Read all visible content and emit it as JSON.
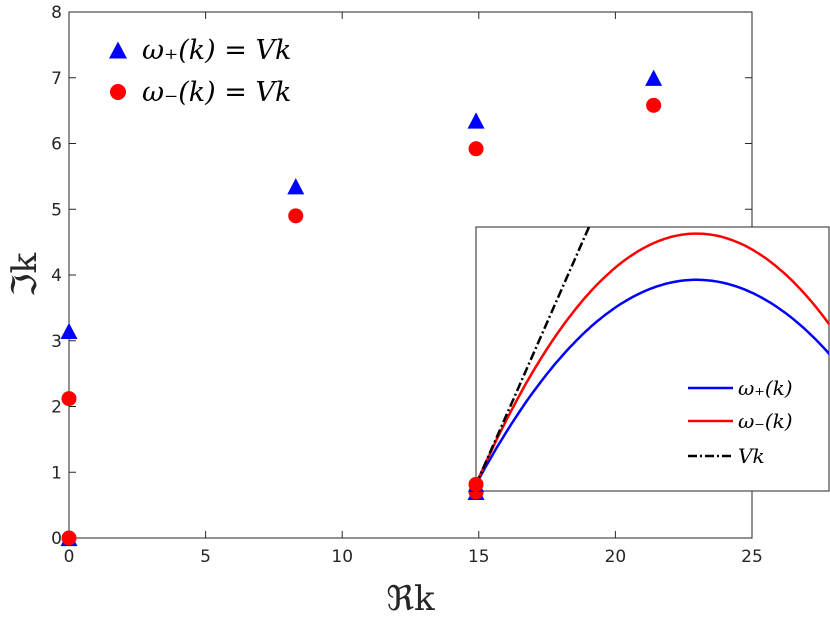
{
  "chart_data": {
    "main": {
      "type": "scatter",
      "xlabel": "ℜk",
      "ylabel": "ℑk",
      "xlim": [
        0,
        25
      ],
      "ylim": [
        0,
        8
      ],
      "xticks": [
        "0",
        "5",
        "10",
        "15",
        "20",
        "25"
      ],
      "yticks": [
        "0",
        "1",
        "2",
        "3",
        "4",
        "5",
        "6",
        "7",
        "8"
      ],
      "series": [
        {
          "name": "ω₊(k) = Vk",
          "marker": "triangle",
          "color": "#0000ff",
          "points": [
            [
              0,
              0
            ],
            [
              0,
              3.15
            ],
            [
              8.3,
              5.35
            ],
            [
              14.9,
              0.7
            ],
            [
              14.9,
              6.35
            ],
            [
              21.4,
              7.0
            ]
          ]
        },
        {
          "name": "ω₋(k) = Vk",
          "marker": "circle",
          "color": "#ff0000",
          "points": [
            [
              0,
              0
            ],
            [
              0,
              2.12
            ],
            [
              8.3,
              4.9
            ],
            [
              14.9,
              0.7
            ],
            [
              14.9,
              5.92
            ],
            [
              21.4,
              6.58
            ]
          ]
        }
      ],
      "legend_position": "top-left"
    },
    "inset": {
      "type": "line",
      "xlim": [
        14.9,
        27.9
      ],
      "ylim": [
        0.6,
        4.6
      ],
      "shared_point": [
        14.9,
        0.7
      ],
      "series": [
        {
          "name": "ω₊(k)",
          "color": "#0000ff",
          "style": "solid",
          "peak_x": 23.0,
          "peak_y": 3.8
        },
        {
          "name": "ω₋(k)",
          "color": "#ff0000",
          "style": "solid",
          "peak_x": 23.0,
          "peak_y": 4.5
        },
        {
          "name": "Vk",
          "color": "#000000",
          "style": "dash-dot",
          "slope": 0.94
        }
      ],
      "legend_position": "bottom-right"
    }
  }
}
